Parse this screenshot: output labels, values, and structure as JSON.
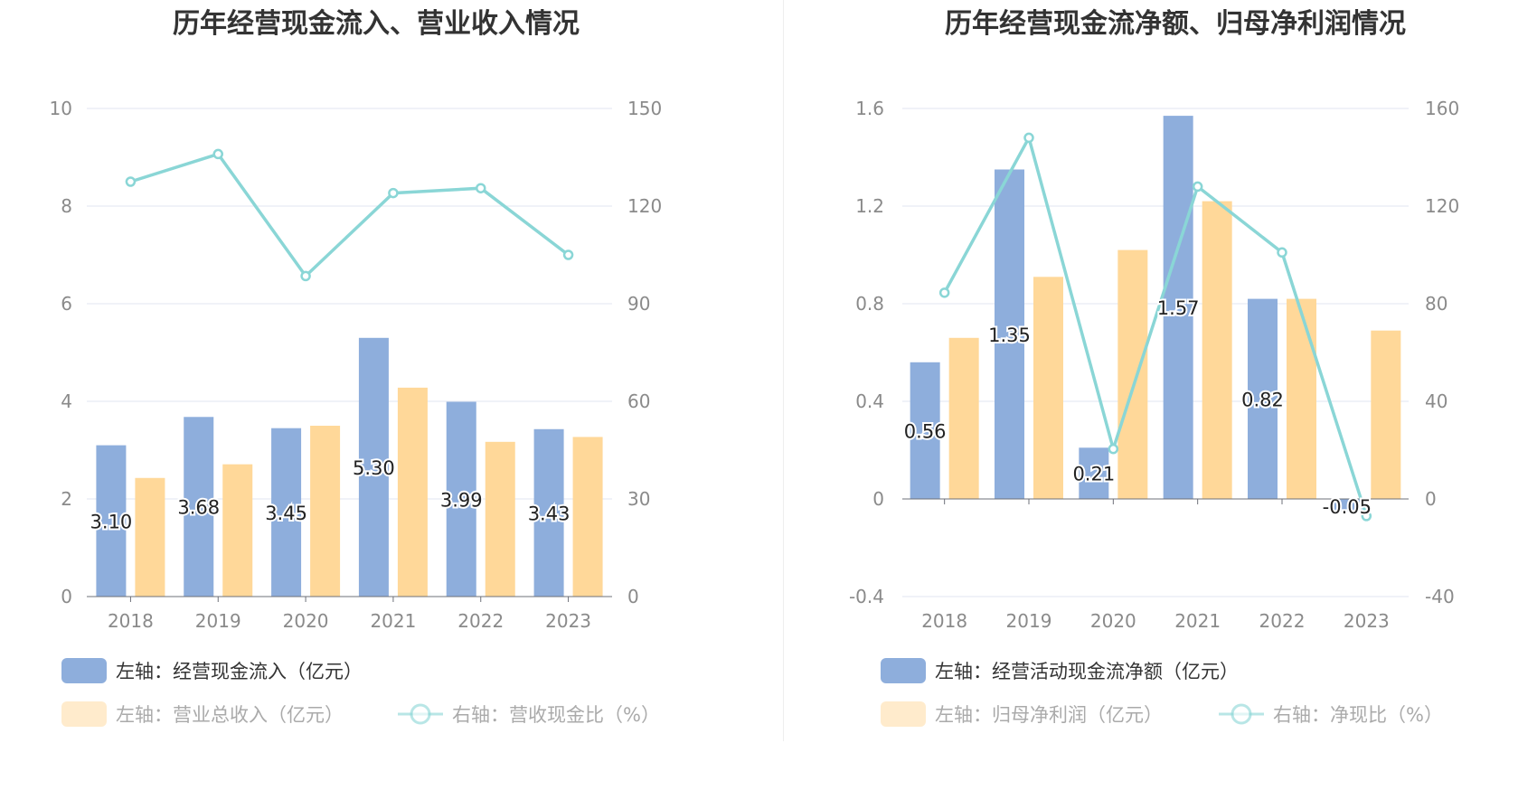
{
  "chart_data": [
    {
      "type": "bar",
      "title": "历年经营现金流入、营业收入情况",
      "categories": [
        "2018",
        "2019",
        "2020",
        "2021",
        "2022",
        "2023"
      ],
      "left_axis": {
        "min": 0,
        "max": 10,
        "ticks": [
          "0",
          "2",
          "4",
          "6",
          "8",
          "10"
        ]
      },
      "right_axis": {
        "min": 0,
        "max": 150,
        "ticks": [
          "0",
          "30",
          "60",
          "90",
          "120",
          "150"
        ]
      },
      "series": [
        {
          "name": "左轴：经营现金流入（亿元）",
          "type": "bar",
          "axis": "left",
          "color": "#8eaedc",
          "values": [
            3.1,
            3.68,
            3.45,
            5.3,
            3.99,
            3.43
          ],
          "labels": [
            "3.10",
            "3.68",
            "3.45",
            "5.30",
            "3.99",
            "3.43"
          ]
        },
        {
          "name": "左轴：营业总收入（亿元）",
          "type": "bar",
          "axis": "left",
          "color": "#ffd899",
          "values": [
            2.43,
            2.71,
            3.5,
            4.28,
            3.17,
            3.27
          ]
        },
        {
          "name": "右轴：营收现金比（%）",
          "type": "line",
          "axis": "right",
          "color": "#8ad6d6",
          "values": [
            127.5,
            136.0,
            98.5,
            124.0,
            125.5,
            105.0
          ]
        }
      ],
      "grid": true,
      "legend": "bottom"
    },
    {
      "type": "bar",
      "title": "历年经营现金流净额、归母净利润情况",
      "categories": [
        "2018",
        "2019",
        "2020",
        "2021",
        "2022",
        "2023"
      ],
      "left_axis": {
        "min": -0.4,
        "max": 1.6,
        "ticks": [
          "-0.4",
          "0",
          "0.4",
          "0.8",
          "1.2",
          "1.6"
        ]
      },
      "right_axis": {
        "min": -40,
        "max": 160,
        "ticks": [
          "-40",
          "0",
          "40",
          "80",
          "120",
          "160"
        ]
      },
      "series": [
        {
          "name": "左轴：经营活动现金流净额（亿元）",
          "type": "bar",
          "axis": "left",
          "color": "#8eaedc",
          "values": [
            0.56,
            1.35,
            0.21,
            1.57,
            0.82,
            -0.05
          ],
          "labels": [
            "0.56",
            "1.35",
            "0.21",
            "1.57",
            "0.82",
            "-0.05"
          ]
        },
        {
          "name": "左轴：归母净利润（亿元）",
          "type": "bar",
          "axis": "left",
          "color": "#ffd899",
          "values": [
            0.66,
            0.91,
            1.02,
            1.22,
            0.82,
            0.69
          ]
        },
        {
          "name": "右轴：净现比（%）",
          "type": "line",
          "axis": "right",
          "color": "#8ad6d6",
          "values": [
            84.5,
            148.0,
            20.5,
            128.0,
            101.0,
            -7.0
          ]
        }
      ],
      "grid": true,
      "legend": "bottom"
    }
  ]
}
